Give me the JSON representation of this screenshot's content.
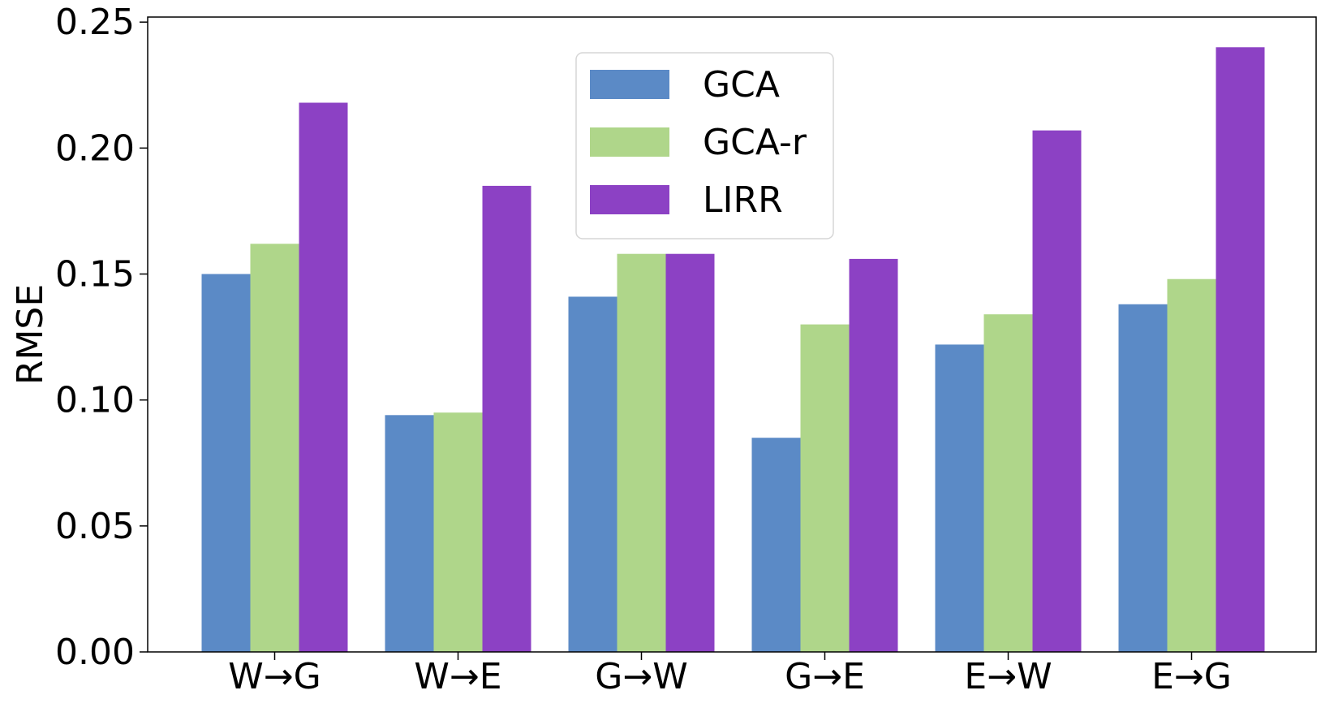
{
  "chart_data": {
    "type": "bar",
    "title": "",
    "xlabel": "",
    "ylabel": "RMSE",
    "ylim": [
      0,
      0.252
    ],
    "yticks": [
      "0.00",
      "0.05",
      "0.10",
      "0.15",
      "0.20",
      "0.25"
    ],
    "ytick_values": [
      0,
      0.05,
      0.1,
      0.15,
      0.2,
      0.25
    ],
    "categories": [
      "W→G",
      "W→E",
      "G→W",
      "G→E",
      "E→W",
      "E→G"
    ],
    "series": [
      {
        "name": "GCA",
        "color": "#5b8ac6",
        "values": [
          0.15,
          0.094,
          0.141,
          0.085,
          0.122,
          0.138
        ]
      },
      {
        "name": "GCA-r",
        "color": "#afd68a",
        "values": [
          0.162,
          0.095,
          0.158,
          0.13,
          0.134,
          0.148
        ]
      },
      {
        "name": "LIRR",
        "color": "#8c41c4",
        "values": [
          0.218,
          0.185,
          0.158,
          0.156,
          0.207,
          0.24
        ]
      }
    ],
    "grid": false,
    "legend_position": "top-center"
  }
}
